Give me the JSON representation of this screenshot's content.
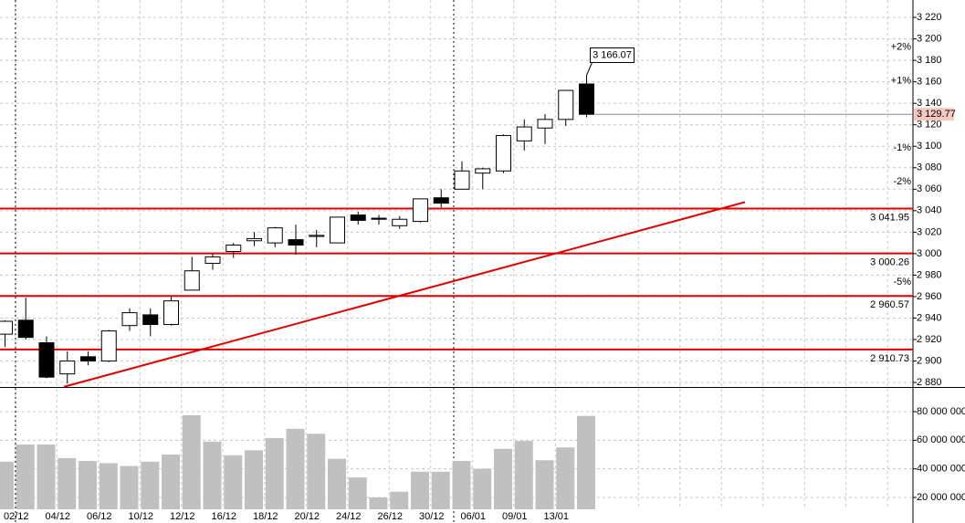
{
  "chart_data": {
    "type": "candlestick",
    "categories": [
      null,
      "02/12",
      null,
      "04/12",
      null,
      "06/12",
      null,
      "10/12",
      null,
      "12/12",
      null,
      "16/12",
      null,
      "18/12",
      null,
      "20/12",
      null,
      "24/12",
      null,
      "26/12",
      null,
      "30/12",
      null,
      "06/01",
      null,
      "09/01",
      null,
      "13/01",
      null
    ],
    "open": [
      2925,
      2938,
      2917,
      2888,
      2904,
      2900,
      2933,
      2943,
      2934,
      2966,
      2991,
      3002,
      3012,
      3010,
      3013,
      3016,
      3010,
      3036,
      3033,
      3026,
      3030,
      3052,
      3060,
      3075,
      3077,
      3105,
      3117,
      3125,
      3158
    ],
    "high": [
      2938,
      2959,
      2923,
      2909,
      2909,
      2929,
      2949,
      2949,
      2960,
      2997,
      3000,
      3010,
      3020,
      3025,
      3027,
      3022,
      3034,
      3039,
      3036,
      3035,
      3051,
      3060,
      3086,
      3080,
      3111,
      3125,
      3130,
      3152,
      3166.07
    ],
    "low": [
      2913,
      2920,
      2884,
      2879,
      2896,
      2899,
      2928,
      2923,
      2933,
      2966,
      2985,
      2996,
      3007,
      3006,
      2999,
      3006,
      3010,
      3027,
      3027,
      3023,
      3029,
      3043,
      3060,
      3060,
      3075,
      3096,
      3102,
      3119,
      3127
    ],
    "close": [
      2937,
      2922,
      2885,
      2900,
      2900,
      2928,
      2945,
      2934,
      2956,
      2984,
      2997,
      3008,
      3014,
      3024,
      3008,
      3017,
      3034,
      3031,
      3032,
      3032,
      3051,
      3047,
      3077,
      3079,
      3110,
      3118,
      3125,
      3152,
      3129.77
    ],
    "high_value_labels": [
      null,
      null,
      null,
      null,
      null,
      null,
      null,
      null,
      null,
      null,
      null,
      null,
      null,
      null,
      null,
      null,
      null,
      null,
      null,
      null,
      null,
      null,
      null,
      null,
      null,
      null,
      null,
      null,
      "3 166.07"
    ],
    "close_value_labels": [
      null,
      null,
      null,
      null,
      null,
      null,
      null,
      null,
      null,
      null,
      null,
      null,
      null,
      null,
      null,
      null,
      null,
      null,
      null,
      null,
      null,
      null,
      null,
      null,
      null,
      null,
      null,
      null,
      "3 129.77"
    ],
    "up_color": "#ffffff",
    "down_color": "#000000",
    "ylim": [
      2875.8,
      3236.2
    ],
    "yticks": [
      {
        "value": 2880,
        "label": "2 880"
      },
      {
        "value": 2900,
        "label": "2 900"
      },
      {
        "value": 2920,
        "label": "2 920"
      },
      {
        "value": 2940,
        "label": "2 940"
      },
      {
        "value": 2960,
        "label": "2 960"
      },
      {
        "value": 2980,
        "label": "2 980"
      },
      {
        "value": 3000,
        "label": "3 000"
      },
      {
        "value": 3020,
        "label": "3 020"
      },
      {
        "value": 3040,
        "label": "3 040"
      },
      {
        "value": 3060,
        "label": "3 060"
      },
      {
        "value": 3080,
        "label": "3 080"
      },
      {
        "value": 3100,
        "label": "3 100"
      },
      {
        "value": 3120,
        "label": "3 120"
      },
      {
        "value": 3140,
        "label": "3 140"
      },
      {
        "value": 3160,
        "label": "3 160"
      },
      {
        "value": 3180,
        "label": "3 180"
      },
      {
        "value": 3200,
        "label": "3 200"
      },
      {
        "value": 3220,
        "label": "3 220"
      }
    ],
    "grid": true,
    "levels": [
      {
        "value": 3041.95,
        "label": "3 041.95"
      },
      {
        "value": 3000.26,
        "label": "3 000.26"
      },
      {
        "value": 2960.57,
        "label": "2 960.57"
      },
      {
        "value": 2910.73,
        "label": "2 910.73"
      }
    ],
    "level_color": "#e00000",
    "percent_levels": [
      {
        "value": 2,
        "label": "+2%"
      },
      {
        "value": 1,
        "label": "+1%"
      },
      {
        "value": -1,
        "label": "-1%"
      },
      {
        "value": -2,
        "label": "-2%"
      },
      {
        "value": -5,
        "label": "-5%"
      }
    ],
    "percent_colors": {
      "positive": "#008000",
      "negative": "#c00000"
    },
    "trendline": {
      "x": [
        2.86,
        35.65
      ],
      "y": [
        2876,
        3048
      ],
      "color": "#e00000"
    },
    "volume": {
      "values": [
        45000000,
        57000000,
        57000000,
        47500000,
        45500000,
        44000000,
        42000000,
        45000000,
        50000000,
        77500000,
        59000000,
        49500000,
        53000000,
        61500000,
        68000000,
        64500000,
        47000000,
        34000000,
        20000000,
        24000000,
        38000000,
        38000000,
        45500000,
        40000000,
        54000000,
        59500000,
        46000000,
        55000000,
        77000000
      ],
      "color": "#c0c0c0",
      "ylim": [
        11700000,
        96600000
      ],
      "yticks": [
        {
          "value": 20000000,
          "label": "20 000 000"
        },
        {
          "value": 40000000,
          "label": "40 000 000"
        },
        {
          "value": 60000000,
          "label": "60 000 000"
        },
        {
          "value": 80000000,
          "label": "80 000 000"
        }
      ]
    }
  }
}
